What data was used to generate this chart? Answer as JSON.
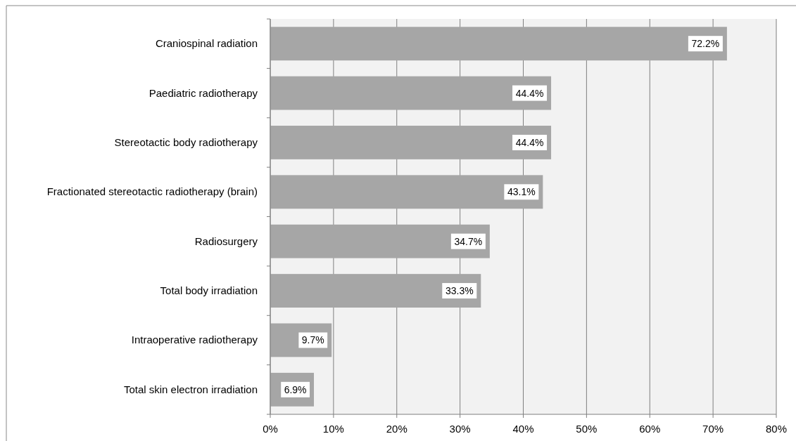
{
  "chart_data": {
    "type": "bar",
    "orientation": "horizontal",
    "categories": [
      "Craniospinal radiation",
      "Paediatric radiotherapy",
      "Stereotactic body radiotherapy",
      "Fractionated stereotactic radiotherapy (brain)",
      "Radiosurgery",
      "Total body irradiation",
      "Intraoperative radiotherapy",
      "Total skin electron irradiation"
    ],
    "values": [
      72.2,
      44.4,
      44.4,
      43.1,
      34.7,
      33.3,
      9.7,
      6.9
    ],
    "value_labels": [
      "72.2%",
      "44.4%",
      "44.4%",
      "43.1%",
      "34.7%",
      "33.3%",
      "9.7%",
      "6.9%"
    ],
    "color": "#a6a6a6",
    "xlim": [
      0,
      80
    ],
    "xticks": [
      {
        "value": 0,
        "label": "0%"
      },
      {
        "value": 10,
        "label": "10%"
      },
      {
        "value": 20,
        "label": "20%"
      },
      {
        "value": 30,
        "label": "30%"
      },
      {
        "value": 40,
        "label": "40%"
      },
      {
        "value": 50,
        "label": "50%"
      },
      {
        "value": 60,
        "label": "60%"
      },
      {
        "value": 70,
        "label": "70%"
      },
      {
        "value": 80,
        "label": "80%"
      }
    ],
    "grid": "x"
  }
}
